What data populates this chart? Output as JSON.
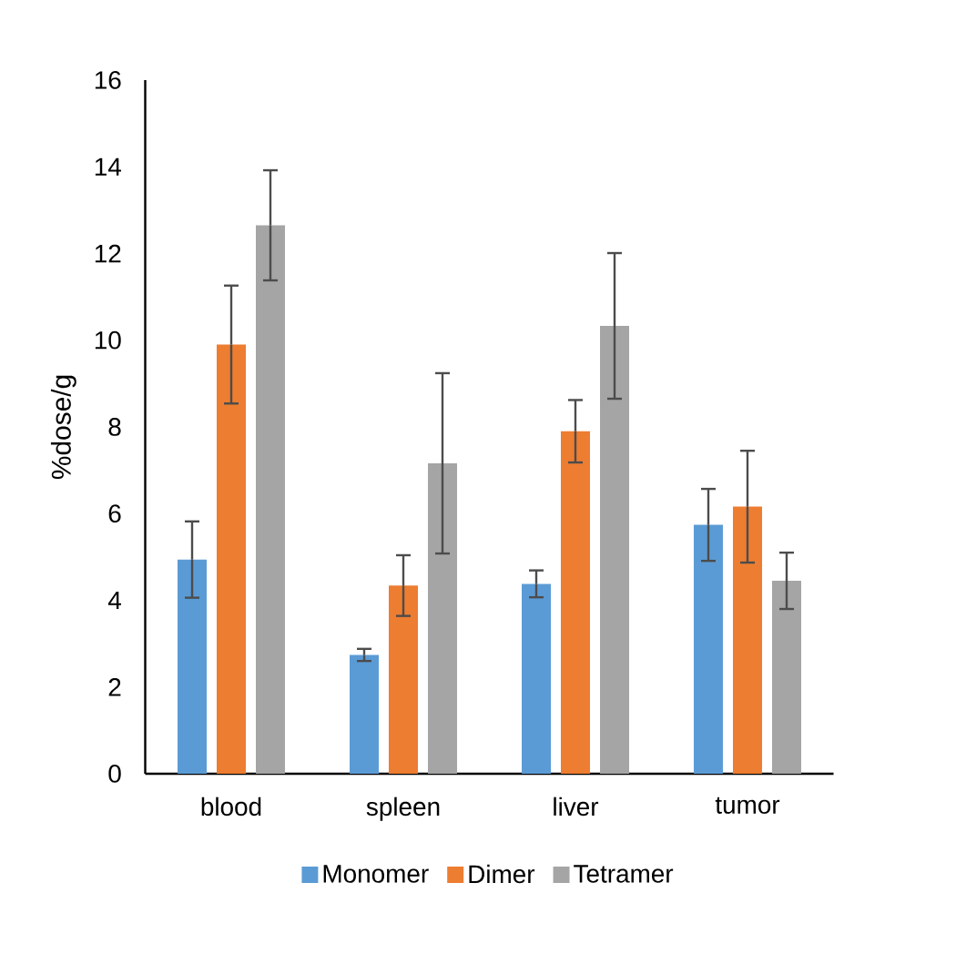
{
  "chart_data": {
    "type": "bar",
    "ylabel": "%dose/g",
    "categories": [
      "blood",
      "spleen",
      "liver",
      "tumor"
    ],
    "series": [
      {
        "name": "Monomer",
        "color": "#5b9bd5",
        "values": [
          4.94,
          2.74,
          4.38,
          5.74
        ],
        "errors": [
          0.88,
          0.14,
          0.31,
          0.83
        ]
      },
      {
        "name": "Dimer",
        "color": "#ed7d31",
        "values": [
          9.9,
          4.34,
          7.9,
          6.16
        ],
        "errors": [
          1.36,
          0.7,
          0.72,
          1.29
        ]
      },
      {
        "name": "Tetramer",
        "color": "#a5a5a5",
        "values": [
          12.65,
          7.16,
          10.33,
          4.45
        ],
        "errors": [
          1.27,
          2.08,
          1.68,
          0.65
        ]
      }
    ],
    "ylim": [
      0,
      16
    ],
    "yticks": [
      0,
      2,
      4,
      6,
      8,
      10,
      12,
      14,
      16
    ],
    "grid": false,
    "legend": "bottom"
  }
}
